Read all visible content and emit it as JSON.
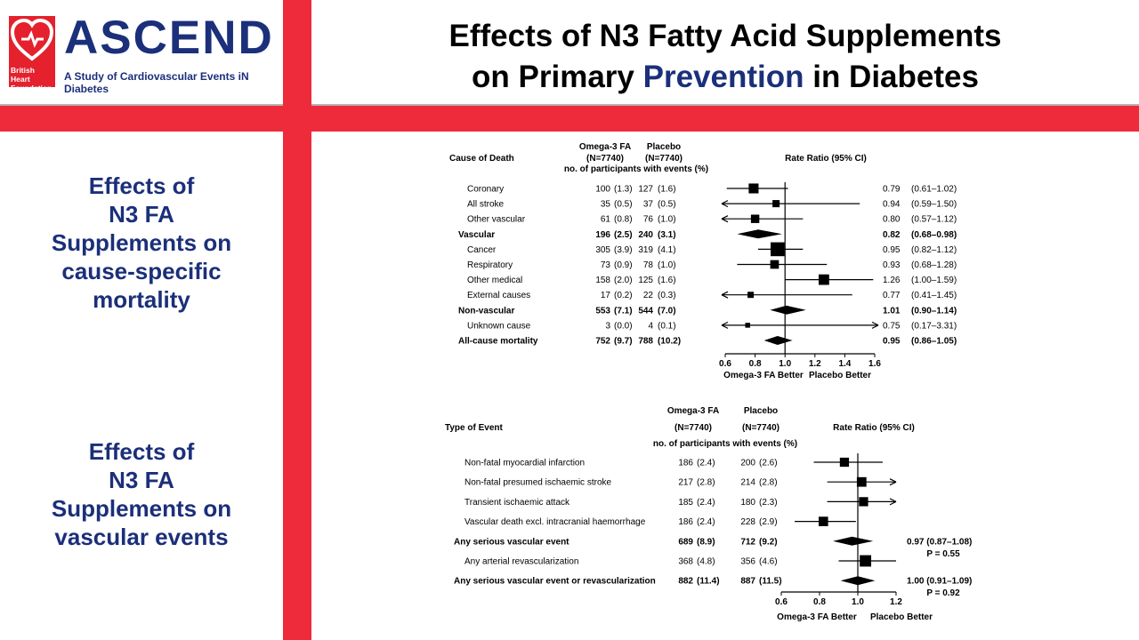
{
  "logo": {
    "wordmark": "ASCEND",
    "tagline": "A Study of Cardiovascular Events iN Diabetes",
    "bhf_text": "British Heart Foundation"
  },
  "title": {
    "line1": "Effects of N3 Fatty Acid Supplements",
    "line2_pre": "on Primary ",
    "line2_highlight": "Prevention",
    "line2_post": " in Diabetes"
  },
  "sidebar": {
    "section1": [
      "Effects of",
      "N3 FA",
      "Supplements on",
      "cause-specific",
      "mortality"
    ],
    "section2": [
      "Effects of",
      "N3 FA",
      "Supplements on",
      "vascular events"
    ]
  },
  "colors": {
    "brand_navy": "#1b2f7a",
    "accent_red": "#ee2b3b"
  },
  "chart_data": [
    {
      "type": "forest",
      "headers": {
        "row_label": "Cause of Death",
        "group1": "Omega-3 FA",
        "group1_n": "(N=7740)",
        "group2": "Placebo",
        "group2_n": "(N=7740)",
        "events_label": "no. of participants with events (%)",
        "effect_label": "Rate Ratio (95% CI)"
      },
      "xlim": [
        0.6,
        1.6
      ],
      "xticks": [
        "0.6",
        "0.8",
        "1.0",
        "1.2",
        "1.4",
        "1.6"
      ],
      "reference_line": 1.0,
      "axis_caption_left": "Omega-3 FA Better",
      "axis_caption_right": "Placebo Better",
      "rows": [
        {
          "label": "Coronary",
          "bold": false,
          "g1": "100",
          "g1pct": "(1.3)",
          "g2": "127",
          "g2pct": "(1.6)",
          "rr": 0.79,
          "lo": 0.61,
          "hi": 1.02,
          "rr_text": "0.79",
          "ci_text": "(0.61–1.02)",
          "kind": "square",
          "w": 4.6
        },
        {
          "label": "All stroke",
          "bold": false,
          "g1": "35",
          "g1pct": "(0.5)",
          "g2": "37",
          "g2pct": "(0.5)",
          "rr": 0.94,
          "lo": 0.59,
          "hi": 1.5,
          "rr_text": "0.94",
          "ci_text": "(0.59–1.50)",
          "kind": "square",
          "w": 1.5
        },
        {
          "label": "Other vascular",
          "bold": false,
          "g1": "61",
          "g1pct": "(0.8)",
          "g2": "76",
          "g2pct": "(1.0)",
          "rr": 0.8,
          "lo": 0.57,
          "hi": 1.12,
          "rr_text": "0.80",
          "ci_text": "(0.57–1.12)",
          "kind": "square",
          "w": 2.7
        },
        {
          "label": "Vascular",
          "bold": true,
          "g1": "196",
          "g1pct": "(2.5)",
          "g2": "240",
          "g2pct": "(3.1)",
          "rr": 0.82,
          "lo": 0.68,
          "hi": 0.98,
          "rr_text": "0.82",
          "ci_text": "(0.68–0.98)",
          "kind": "diamond"
        },
        {
          "label": "Cancer",
          "bold": false,
          "g1": "305",
          "g1pct": "(3.9)",
          "g2": "319",
          "g2pct": "(4.1)",
          "rr": 0.95,
          "lo": 0.82,
          "hi": 1.12,
          "rr_text": "0.95",
          "ci_text": "(0.82–1.12)",
          "kind": "square",
          "w": 12.4
        },
        {
          "label": "Respiratory",
          "bold": false,
          "g1": "73",
          "g1pct": "(0.9)",
          "g2": "78",
          "g2pct": "(1.0)",
          "rr": 0.93,
          "lo": 0.68,
          "hi": 1.28,
          "rr_text": "0.93",
          "ci_text": "(0.68–1.28)",
          "kind": "square",
          "w": 3.0
        },
        {
          "label": "Other medical",
          "bold": false,
          "g1": "158",
          "g1pct": "(2.0)",
          "g2": "125",
          "g2pct": "(1.6)",
          "rr": 1.26,
          "lo": 1.0,
          "hi": 1.59,
          "rr_text": "1.26",
          "ci_text": "(1.00–1.59)",
          "kind": "square",
          "w": 5.6
        },
        {
          "label": "External causes",
          "bold": false,
          "g1": "17",
          "g1pct": "(0.2)",
          "g2": "22",
          "g2pct": "(0.3)",
          "rr": 0.77,
          "lo": 0.41,
          "hi": 1.45,
          "rr_text": "0.77",
          "ci_text": "(0.41–1.45)",
          "kind": "square",
          "w": 0.8
        },
        {
          "label": "Non-vascular",
          "bold": true,
          "g1": "553",
          "g1pct": "(7.1)",
          "g2": "544",
          "g2pct": "(7.0)",
          "rr": 1.01,
          "lo": 0.9,
          "hi": 1.14,
          "rr_text": "1.01",
          "ci_text": "(0.90–1.14)",
          "kind": "diamond"
        },
        {
          "label": "Unknown cause",
          "bold": false,
          "g1": "3",
          "g1pct": "(0.0)",
          "g2": "4",
          "g2pct": "(0.1)",
          "rr": 0.75,
          "lo": 0.17,
          "hi": 3.31,
          "rr_text": "0.75",
          "ci_text": "(0.17–3.31)",
          "kind": "square",
          "w": 0.2
        },
        {
          "label": "All-cause mortality",
          "bold": true,
          "g1": "752",
          "g1pct": "(9.7)",
          "g2": "788",
          "g2pct": "(10.2)",
          "rr": 0.95,
          "lo": 0.86,
          "hi": 1.05,
          "rr_text": "0.95",
          "ci_text": "(0.86–1.05)",
          "kind": "diamond"
        }
      ]
    },
    {
      "type": "forest",
      "headers": {
        "row_label": "Type of Event",
        "group1": "Omega-3 FA",
        "group1_n": "(N=7740)",
        "group2": "Placebo",
        "group2_n": "(N=7740)",
        "events_label": "no. of participants with events (%)",
        "effect_label": "Rate Ratio (95% CI)"
      },
      "xlim": [
        0.6,
        1.2
      ],
      "xticks": [
        "0.6",
        "0.8",
        "1.0",
        "1.2"
      ],
      "reference_line": 1.0,
      "axis_caption_left": "Omega-3 FA Better",
      "axis_caption_right": "Placebo Better",
      "rows": [
        {
          "label": "Non-fatal myocardial infarction",
          "bold": false,
          "g1": "186",
          "g1pct": "(2.4)",
          "g2": "200",
          "g2pct": "(2.6)",
          "rr": 0.93,
          "lo": 0.77,
          "hi": 1.13,
          "kind": "square",
          "w": 3.6,
          "rr_text": "",
          "ci_text": ""
        },
        {
          "label": "Non-fatal presumed ischaemic stroke",
          "bold": false,
          "g1": "217",
          "g1pct": "(2.8)",
          "g2": "214",
          "g2pct": "(2.8)",
          "rr": 1.02,
          "lo": 0.84,
          "hi": 1.24,
          "kind": "square",
          "w": 4.2,
          "rr_text": "",
          "ci_text": ""
        },
        {
          "label": "Transient ischaemic attack",
          "bold": false,
          "g1": "185",
          "g1pct": "(2.4)",
          "g2": "180",
          "g2pct": "(2.3)",
          "rr": 1.03,
          "lo": 0.84,
          "hi": 1.26,
          "kind": "square",
          "w": 3.6,
          "rr_text": "",
          "ci_text": ""
        },
        {
          "label": "Vascular death excl. intracranial haemorrhage",
          "bold": false,
          "g1": "186",
          "g1pct": "(2.4)",
          "g2": "228",
          "g2pct": "(2.9)",
          "rr": 0.82,
          "lo": 0.67,
          "hi": 0.99,
          "kind": "square",
          "w": 4.0,
          "rr_text": "",
          "ci_text": ""
        },
        {
          "label": "Any serious vascular event",
          "bold": true,
          "g1": "689",
          "g1pct": "(8.9)",
          "g2": "712",
          "g2pct": "(9.2)",
          "rr": 0.97,
          "lo": 0.87,
          "hi": 1.08,
          "kind": "diamond",
          "rr_text": "0.97 (0.87–1.08)",
          "ci_text": "P = 0.55"
        },
        {
          "label": "Any arterial revascularization",
          "bold": false,
          "g1": "368",
          "g1pct": "(4.8)",
          "g2": "356",
          "g2pct": "(4.6)",
          "rr": 1.04,
          "lo": 0.9,
          "hi": 1.2,
          "kind": "square",
          "w": 7.2,
          "rr_text": "",
          "ci_text": ""
        },
        {
          "label": "Any serious vascular event or revascularization",
          "bold": true,
          "g1": "882",
          "g1pct": "(11.4)",
          "g2": "887",
          "g2pct": "(11.5)",
          "rr": 1.0,
          "lo": 0.91,
          "hi": 1.09,
          "kind": "diamond",
          "rr_text": "1.00 (0.91–1.09)",
          "ci_text": "P = 0.92"
        }
      ]
    }
  ]
}
